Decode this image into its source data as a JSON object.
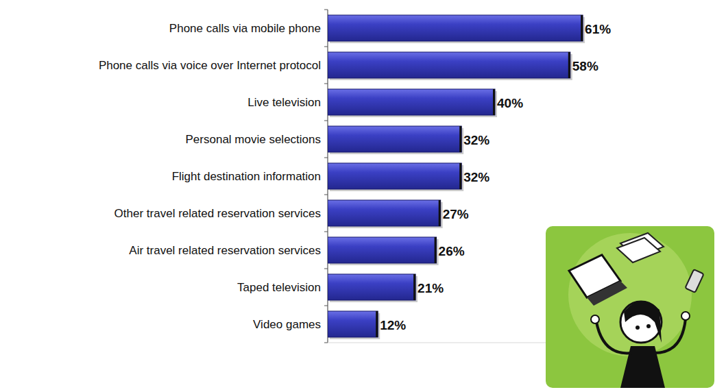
{
  "chart_data": {
    "type": "bar",
    "orientation": "horizontal",
    "categories": [
      "Phone calls via mobile phone",
      "Phone calls via voice over Internet protocol",
      "Live television",
      "Personal movie selections",
      "Flight destination information",
      "Other travel related reservation services",
      "Air travel related reservation services",
      "Taped television",
      "Video games"
    ],
    "values": [
      61,
      58,
      40,
      32,
      32,
      27,
      26,
      21,
      12
    ],
    "value_labels": [
      "61%",
      "58%",
      "40%",
      "32%",
      "32%",
      "27%",
      "26%",
      "21%",
      "12%"
    ],
    "xlim": [
      0,
      70
    ],
    "color": "#3b40c4",
    "data_labels": true,
    "tick_labels": "y",
    "grid": false
  }
}
